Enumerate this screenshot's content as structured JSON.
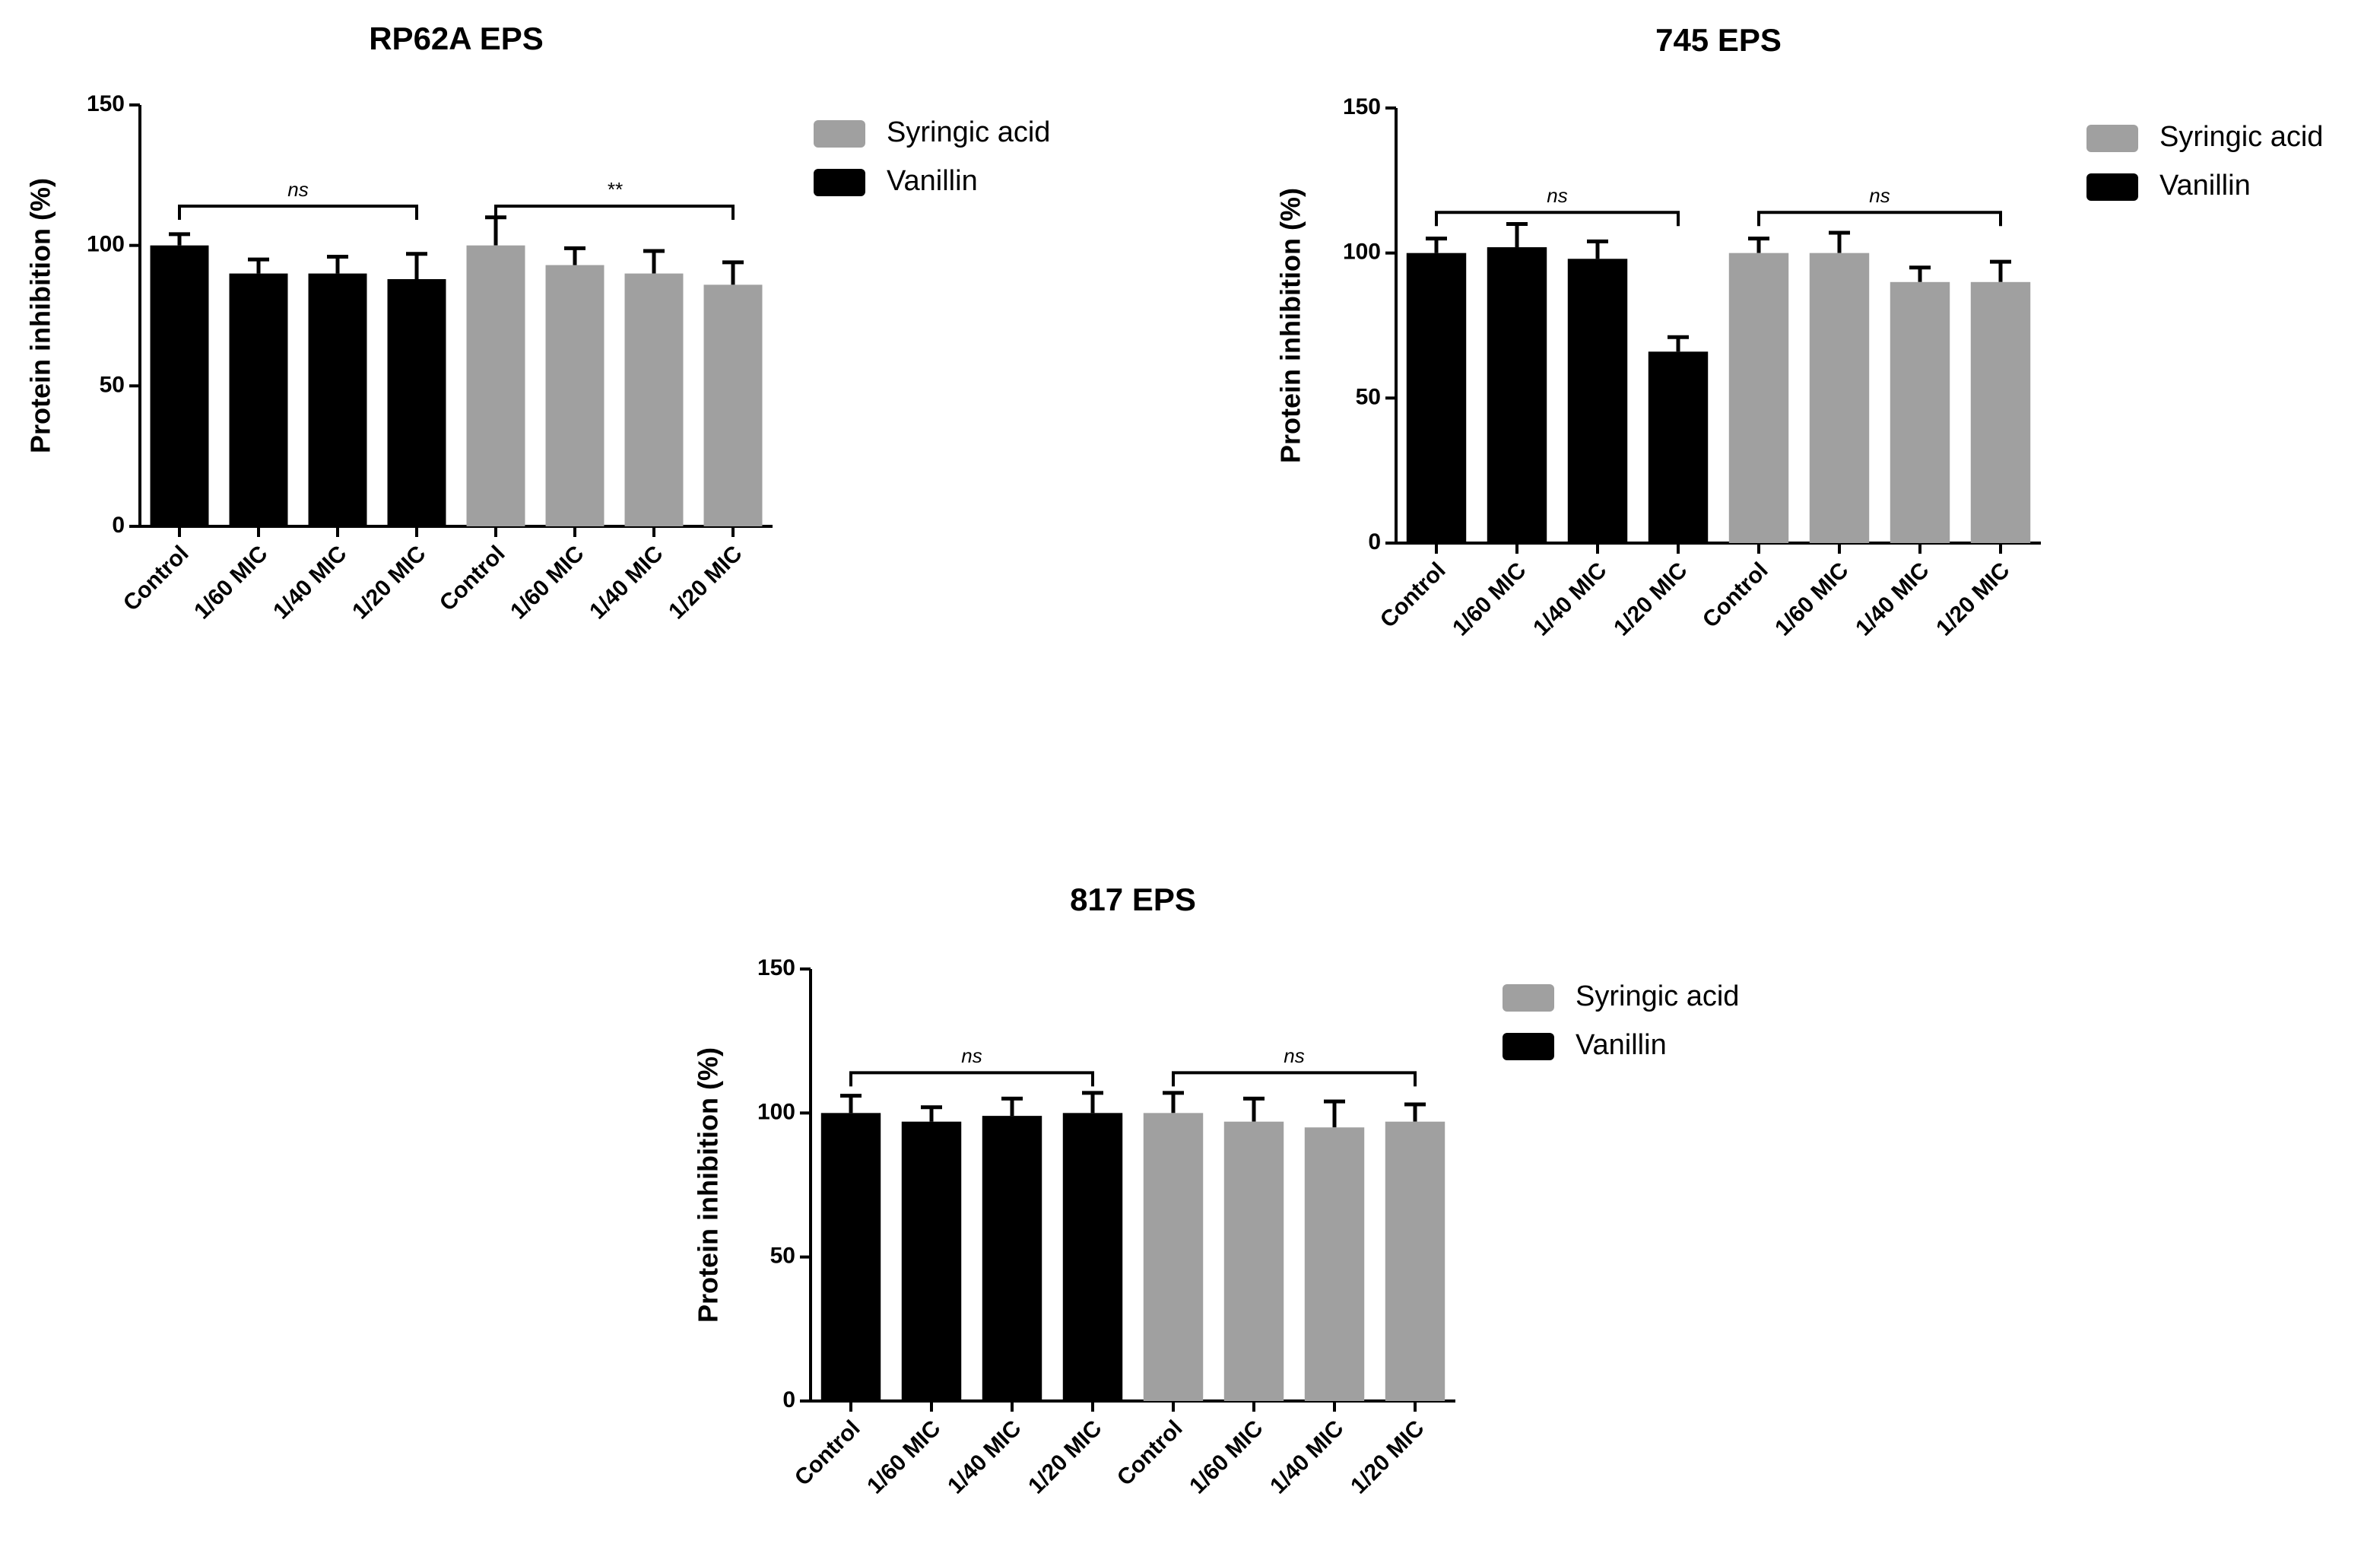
{
  "chart_data": [
    {
      "type": "bar",
      "title": "RP62A EPS",
      "y_label": "Protein inhibition (%)",
      "categories": [
        "Control",
        "1/60 MIC",
        "1/40 MIC",
        "1/20 MIC",
        "Control",
        "1/60 MIC",
        "1/40 MIC",
        "1/20 MIC"
      ],
      "series": [
        {
          "name": "Syringic acid",
          "color": "#a0a0a0",
          "values": [
            null,
            null,
            null,
            null,
            100,
            93,
            90,
            86
          ],
          "errors": [
            null,
            null,
            null,
            null,
            10,
            6,
            8,
            8
          ]
        },
        {
          "name": "Vanillin",
          "color": "#000000",
          "values": [
            100,
            90,
            90,
            88,
            null,
            null,
            null,
            null
          ],
          "errors": [
            4,
            5,
            6,
            9,
            null,
            null,
            null,
            null
          ]
        }
      ],
      "annotations": [
        {
          "text": "ns"
        },
        {
          "text": "**"
        }
      ],
      "ylim": [
        0,
        150
      ],
      "yticks": [
        0,
        50,
        100,
        150
      ],
      "legend": "right"
    },
    {
      "type": "bar",
      "title": "745 EPS",
      "y_label": "Protein inhibition (%)",
      "categories": [
        "Control",
        "1/60 MIC",
        "1/40 MIC",
        "1/20 MIC",
        "Control",
        "1/60 MIC",
        "1/40 MIC",
        "1/20 MIC"
      ],
      "series": [
        {
          "name": "Syringic acid",
          "color": "#a0a0a0",
          "values": [
            null,
            null,
            null,
            null,
            100,
            100,
            90,
            90
          ],
          "errors": [
            null,
            null,
            null,
            null,
            5,
            7,
            5,
            7
          ]
        },
        {
          "name": "Vanillin",
          "color": "#000000",
          "values": [
            100,
            102,
            98,
            66,
            null,
            null,
            null,
            null
          ],
          "errors": [
            5,
            8,
            6,
            5,
            null,
            null,
            null,
            null
          ]
        }
      ],
      "annotations": [
        {
          "text": "ns"
        },
        {
          "text": "ns"
        }
      ],
      "ylim": [
        0,
        150
      ],
      "yticks": [
        0,
        50,
        100,
        150
      ],
      "legend": "right"
    },
    {
      "type": "bar",
      "title": "817 EPS",
      "y_label": "Protein inhibition (%)",
      "categories": [
        "Control",
        "1/60 MIC",
        "1/40 MIC",
        "1/20 MIC",
        "Control",
        "1/60 MIC",
        "1/40 MIC",
        "1/20 MIC"
      ],
      "series": [
        {
          "name": "Syringic acid",
          "color": "#a0a0a0",
          "values": [
            null,
            null,
            null,
            null,
            100,
            97,
            95,
            97
          ],
          "errors": [
            null,
            null,
            null,
            null,
            7,
            8,
            9,
            6
          ]
        },
        {
          "name": "Vanillin",
          "color": "#000000",
          "values": [
            100,
            97,
            99,
            100,
            null,
            null,
            null,
            null
          ],
          "errors": [
            6,
            5,
            6,
            7,
            null,
            null,
            null,
            null
          ]
        }
      ],
      "annotations": [
        {
          "text": "ns"
        },
        {
          "text": "ns"
        }
      ],
      "ylim": [
        0,
        150
      ],
      "yticks": [
        0,
        50,
        100,
        150
      ],
      "legend": "right"
    }
  ]
}
